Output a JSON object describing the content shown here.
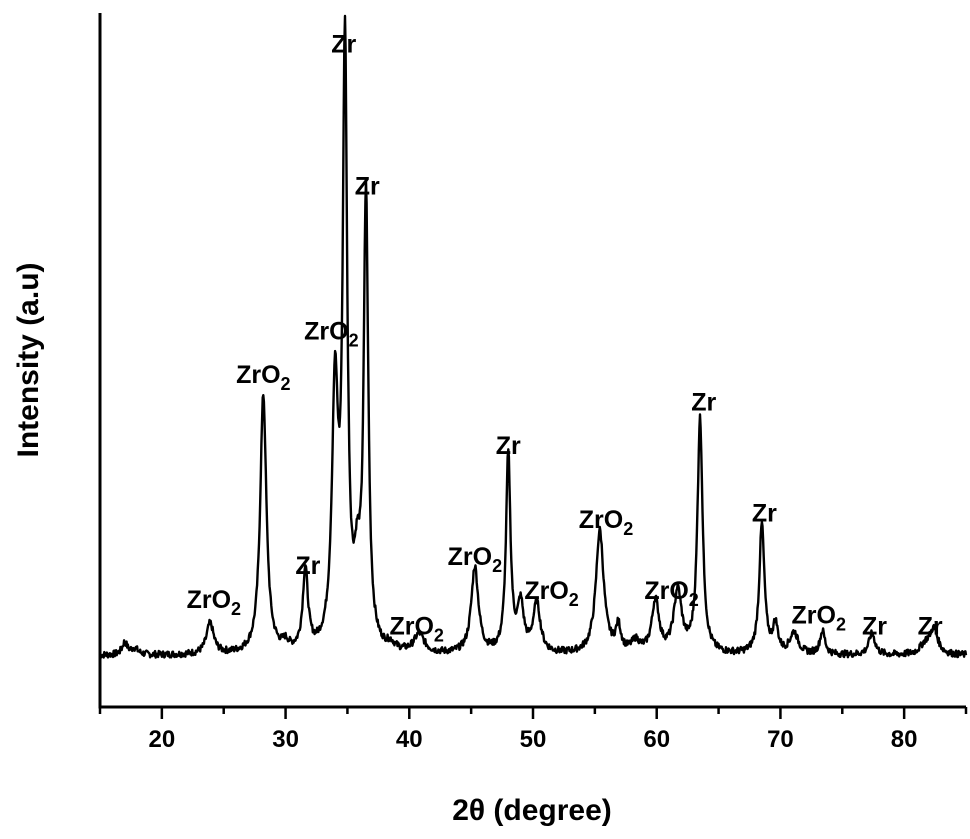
{
  "chart_data": {
    "type": "line",
    "title": "",
    "xlabel": "2θ (degree)",
    "ylabel": "Intensity (a.u)",
    "xlim": [
      15,
      85
    ],
    "ylim": [
      0,
      100
    ],
    "xticks": [
      20,
      30,
      40,
      50,
      60,
      70,
      80
    ],
    "grid": false,
    "legend": "none",
    "baseline": 3.8,
    "peaks": [
      {
        "x": 17.0,
        "h": 2.0,
        "w": 0.25
      },
      {
        "x": 17.8,
        "h": 1.0,
        "w": 0.35
      },
      {
        "x": 23.9,
        "h": 5.0,
        "w": 0.35
      },
      {
        "x": 28.2,
        "h": 42.0,
        "w": 0.3
      },
      {
        "x": 30.0,
        "h": 1.2,
        "w": 0.3
      },
      {
        "x": 31.6,
        "h": 13.0,
        "w": 0.25
      },
      {
        "x": 34.0,
        "h": 41.0,
        "w": 0.3
      },
      {
        "x": 34.8,
        "h": 96.0,
        "w": 0.22
      },
      {
        "x": 35.8,
        "h": 10.0,
        "w": 0.3
      },
      {
        "x": 36.5,
        "h": 73.0,
        "w": 0.22
      },
      {
        "x": 38.5,
        "h": 1.0,
        "w": 0.4
      },
      {
        "x": 40.8,
        "h": 3.0,
        "w": 0.5
      },
      {
        "x": 45.3,
        "h": 14.0,
        "w": 0.35
      },
      {
        "x": 48.0,
        "h": 32.0,
        "w": 0.22
      },
      {
        "x": 49.0,
        "h": 7.5,
        "w": 0.3
      },
      {
        "x": 50.3,
        "h": 8.0,
        "w": 0.35
      },
      {
        "x": 55.4,
        "h": 20.0,
        "w": 0.38
      },
      {
        "x": 56.9,
        "h": 4.0,
        "w": 0.25
      },
      {
        "x": 58.3,
        "h": 1.8,
        "w": 0.4
      },
      {
        "x": 59.9,
        "h": 8.5,
        "w": 0.35
      },
      {
        "x": 61.7,
        "h": 10.0,
        "w": 0.38
      },
      {
        "x": 63.5,
        "h": 38.0,
        "w": 0.25
      },
      {
        "x": 68.5,
        "h": 21.0,
        "w": 0.25
      },
      {
        "x": 69.6,
        "h": 4.5,
        "w": 0.25
      },
      {
        "x": 71.1,
        "h": 3.5,
        "w": 0.4
      },
      {
        "x": 73.4,
        "h": 3.8,
        "w": 0.25
      },
      {
        "x": 77.4,
        "h": 3.5,
        "w": 0.3
      },
      {
        "x": 81.7,
        "h": 1.5,
        "w": 0.5
      },
      {
        "x": 82.4,
        "h": 4.0,
        "w": 0.4
      }
    ],
    "annotations": [
      {
        "main": "ZrO",
        "sub": "2",
        "x": 24.2,
        "y": 11.5
      },
      {
        "main": "ZrO",
        "sub": "2",
        "x": 28.2,
        "y": 48.0
      },
      {
        "main": "Zr",
        "sub": "",
        "x": 31.8,
        "y": 17.0
      },
      {
        "main": "ZrO",
        "sub": "2",
        "x": 33.7,
        "y": 55.0
      },
      {
        "main": "Zr",
        "sub": "",
        "x": 34.7,
        "y": 101.5
      },
      {
        "main": "Zr",
        "sub": "",
        "x": 36.6,
        "y": 78.5
      },
      {
        "main": "ZrO",
        "sub": "2",
        "x": 40.6,
        "y": 7.2
      },
      {
        "main": "ZrO",
        "sub": "2",
        "x": 45.3,
        "y": 18.5
      },
      {
        "main": "Zr",
        "sub": "",
        "x": 48.0,
        "y": 36.5
      },
      {
        "main": "ZrO",
        "sub": "2",
        "x": 51.5,
        "y": 13.0
      },
      {
        "main": "ZrO",
        "sub": "2",
        "x": 55.9,
        "y": 24.5
      },
      {
        "main": "ZrO",
        "sub": "2",
        "x": 61.2,
        "y": 13.0
      },
      {
        "main": "Zr",
        "sub": "",
        "x": 63.8,
        "y": 43.5
      },
      {
        "main": "Zr",
        "sub": "",
        "x": 68.7,
        "y": 25.5
      },
      {
        "main": "ZrO",
        "sub": "2",
        "x": 73.1,
        "y": 9.0
      },
      {
        "main": "Zr",
        "sub": "",
        "x": 77.6,
        "y": 7.2
      },
      {
        "main": "Zr",
        "sub": "",
        "x": 82.1,
        "y": 7.2
      }
    ]
  }
}
